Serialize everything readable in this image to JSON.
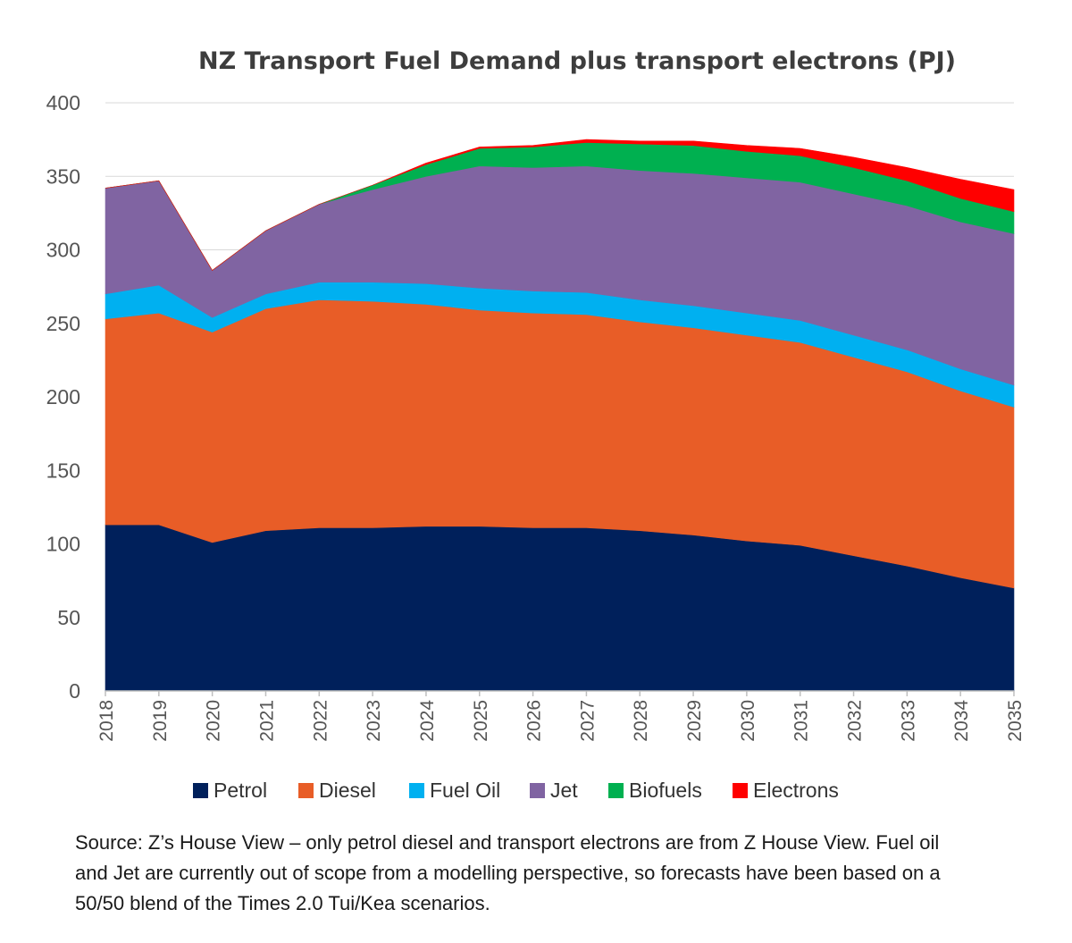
{
  "chart_data": {
    "type": "area",
    "stacked": true,
    "title": "NZ Transport Fuel Demand plus transport electrons (PJ)",
    "xlabel": "",
    "ylabel": "",
    "ylim": [
      0,
      400
    ],
    "yticks": [
      0,
      50,
      100,
      150,
      200,
      250,
      300,
      350,
      400
    ],
    "grid": true,
    "legend_position": "bottom",
    "x": [
      "2018",
      "2019",
      "2020",
      "2021",
      "2022",
      "2023",
      "2024",
      "2025",
      "2026",
      "2027",
      "2028",
      "2029",
      "2030",
      "2031",
      "2032",
      "2033",
      "2034",
      "2035"
    ],
    "series": [
      {
        "name": "Petrol",
        "color": "#00205b",
        "values": [
          113,
          113,
          101,
          109,
          111,
          111,
          112,
          112,
          111,
          111,
          109,
          106,
          102,
          99,
          92,
          85,
          77,
          70
        ]
      },
      {
        "name": "Diesel",
        "color": "#e85d27",
        "values": [
          140,
          144,
          143,
          151,
          155,
          154,
          151,
          147,
          146,
          145,
          142,
          141,
          140,
          138,
          135,
          132,
          127,
          123
        ]
      },
      {
        "name": "Fuel Oil",
        "color": "#00b0f0",
        "values": [
          17,
          19,
          10,
          10,
          12,
          13,
          14,
          15,
          15,
          15,
          15,
          15,
          15,
          15,
          15,
          15,
          15,
          15
        ]
      },
      {
        "name": "Jet",
        "color": "#8064a2",
        "values": [
          72,
          71,
          32,
          43,
          53,
          63,
          73,
          83,
          84,
          86,
          88,
          90,
          92,
          94,
          96,
          98,
          100,
          103
        ]
      },
      {
        "name": "Biofuels",
        "color": "#00b050",
        "values": [
          0,
          0,
          0,
          0,
          0,
          3,
          8,
          12,
          14,
          16,
          18,
          19,
          18,
          18,
          18,
          17,
          16,
          15
        ]
      },
      {
        "name": "Electrons",
        "color": "#ff0000",
        "values": [
          0,
          0,
          0,
          0,
          0,
          0,
          1,
          1,
          1,
          2,
          2,
          3,
          4,
          5,
          7,
          9,
          13,
          15
        ]
      }
    ]
  },
  "source_note": "Source: Z’s House View – only petrol diesel and transport electrons are from Z House View. Fuel oil and Jet are currently out of scope from a modelling perspective, so forecasts have been based on a 50/50 blend of the Times 2.0 Tui/Kea scenarios."
}
